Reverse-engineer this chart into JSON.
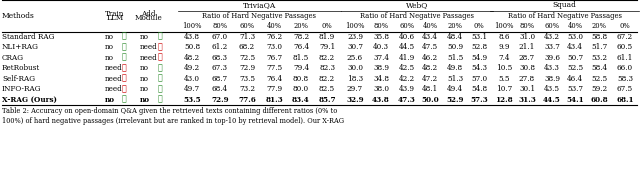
{
  "col_groups": [
    "TriviaQA",
    "WebQ",
    "Squad"
  ],
  "sub_header": "Ratio of Hard Negative Passages",
  "ratios": [
    "100%",
    "80%",
    "60%",
    "40%",
    "20%",
    "0%"
  ],
  "methods": [
    "Standard RAG",
    "NLI+RAG",
    "CRAG",
    "RetRobust",
    "Self-RAG",
    "INFO-RAG",
    "X-RAG (Ours)"
  ],
  "train_llm": [
    "no",
    "no",
    "no",
    "need",
    "need",
    "need",
    "no"
  ],
  "train_llm_check": [
    true,
    true,
    true,
    false,
    false,
    false,
    true
  ],
  "add_module": [
    "no",
    "need",
    "need",
    "no",
    "no",
    "no",
    "no"
  ],
  "add_module_check": [
    true,
    false,
    false,
    true,
    true,
    true,
    true
  ],
  "triviaqa": [
    [
      43.8,
      67.0,
      71.3,
      76.2,
      78.2,
      81.9
    ],
    [
      50.8,
      61.2,
      68.2,
      73.0,
      76.4,
      79.1
    ],
    [
      48.2,
      68.3,
      72.5,
      76.7,
      81.5,
      82.2
    ],
    [
      49.2,
      67.3,
      72.9,
      77.5,
      79.4,
      82.3
    ],
    [
      43.0,
      68.7,
      73.5,
      76.4,
      80.8,
      82.2
    ],
    [
      49.7,
      68.4,
      73.2,
      77.9,
      80.0,
      82.5
    ],
    [
      53.5,
      72.9,
      77.6,
      81.3,
      83.4,
      85.7
    ]
  ],
  "webq": [
    [
      23.9,
      35.8,
      40.6,
      43.4,
      48.4,
      53.1
    ],
    [
      30.7,
      40.3,
      44.5,
      47.5,
      50.9,
      52.8
    ],
    [
      25.6,
      37.4,
      41.9,
      46.2,
      51.5,
      54.9
    ],
    [
      30.0,
      38.9,
      42.5,
      48.2,
      49.8,
      54.3
    ],
    [
      18.3,
      34.8,
      42.2,
      47.2,
      51.3,
      57.0
    ],
    [
      29.7,
      38.0,
      43.9,
      48.1,
      49.4,
      54.8
    ],
    [
      32.9,
      43.8,
      47.3,
      50.0,
      52.9,
      57.3
    ]
  ],
  "squad": [
    [
      8.6,
      31.0,
      43.2,
      53.0,
      58.8,
      67.2
    ],
    [
      9.9,
      21.1,
      33.7,
      43.4,
      51.7,
      60.5
    ],
    [
      7.4,
      28.7,
      39.6,
      50.7,
      53.2,
      61.1
    ],
    [
      10.5,
      30.8,
      43.3,
      52.5,
      58.4,
      66.0
    ],
    [
      5.5,
      27.8,
      38.9,
      46.4,
      52.5,
      58.3
    ],
    [
      10.7,
      30.1,
      43.5,
      53.7,
      59.2,
      67.5
    ],
    [
      12.8,
      31.3,
      44.5,
      54.1,
      60.8,
      68.1
    ]
  ],
  "bold_row": 6,
  "check_color": "#2a8a2a",
  "cross_color": "#cc0000",
  "font_size": 5.2,
  "header_font_size": 5.4,
  "caption": "Table 2: Accuracy on open-domain Q&A given the retrieved texts containing different ratios (0% to\n100%) of hard negative passages (irrelevant but are ranked in top-10 by retrieval model). Our X-RAG"
}
